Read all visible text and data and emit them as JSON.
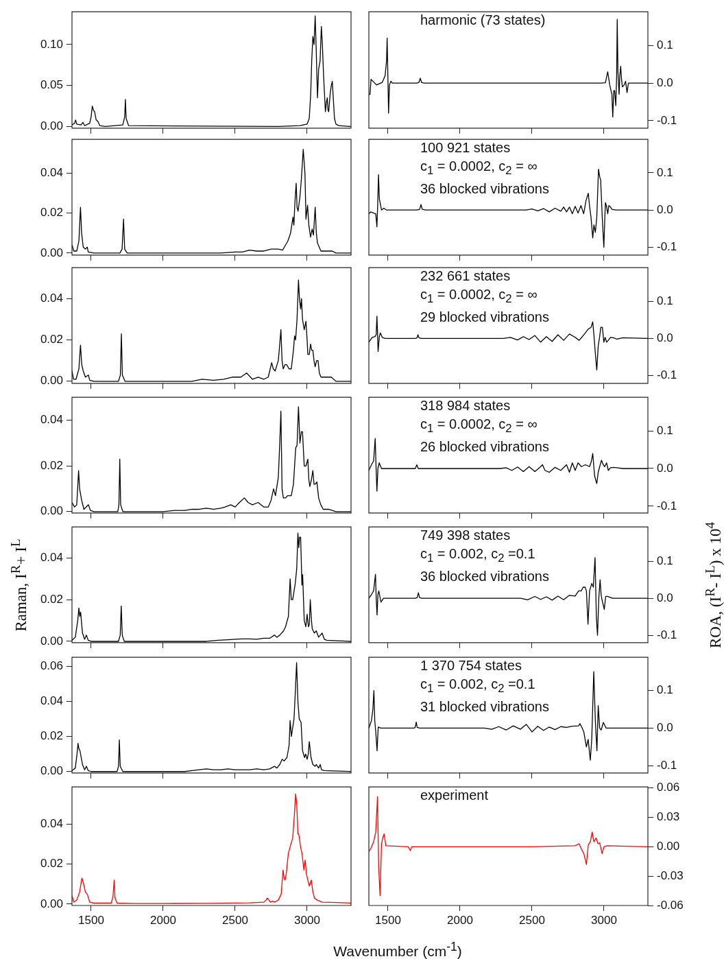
{
  "chart_data": [
    {
      "type": "line",
      "x": [
        1367,
        1385,
        1392,
        1400,
        1430,
        1443,
        1455,
        1490,
        1500,
        1508,
        1516,
        1524,
        1535,
        1548,
        1560,
        1600,
        1720,
        1733,
        1738,
        1743,
        1760,
        2800,
        2950,
        3000,
        3015,
        3025,
        3032,
        3040,
        3048,
        3056,
        3063,
        3072,
        3080,
        3090,
        3099,
        3106,
        3115,
        3127,
        3134,
        3140,
        3145,
        3150,
        3160,
        3168,
        3175,
        3180,
        3190,
        3200,
        3220,
        3305
      ],
      "series": [
        {
          "color": "#000000",
          "values": [
            0.002,
            0.004,
            0.008,
            0.003,
            0.002,
            0.005,
            0.001,
            0.004,
            0.012,
            0.025,
            0.02,
            0.018,
            0.008,
            0.006,
            0.001,
            0,
            0.002,
            0.012,
            0.033,
            0.01,
            0.001,
            0,
            0.001,
            0.003,
            0.01,
            0.04,
            0.08,
            0.11,
            0.1,
            0.135,
            0.095,
            0.035,
            0.07,
            0.08,
            0.122,
            0.1,
            0.06,
            0.018,
            0.03,
            0.035,
            0.02,
            0.018,
            0.04,
            0.05,
            0.055,
            0.04,
            0.01,
            0.003,
            0.001,
            0
          ]
        }
      ],
      "xlim": [
        1367,
        3305
      ],
      "xticks": [
        1500,
        2000,
        2500,
        3000
      ],
      "ylim": [
        -0.002,
        0.14
      ],
      "yticks": [
        {
          "value": 0,
          "label": "0.00"
        },
        {
          "value": 0.05,
          "label": "0.05"
        },
        {
          "value": 0.1,
          "label": "0.10"
        }
      ],
      "tick_labels": "y"
    },
    {
      "type": "line",
      "x": [
        1367,
        1375,
        1382,
        1395,
        1420,
        1460,
        1480,
        1490,
        1494,
        1498,
        1504,
        1510,
        1520,
        1530,
        1700,
        1715,
        1724,
        1733,
        1750,
        2980,
        3010,
        3026,
        3040,
        3055,
        3061,
        3068,
        3074,
        3082,
        3088,
        3092,
        3097,
        3105,
        3110,
        3116,
        3122,
        3128,
        3140,
        3150,
        3160,
        3170,
        3192,
        3305
      ],
      "series": [
        {
          "color": "#000000",
          "values": [
            -0.03,
            -0.03,
            0.01,
            0.005,
            -0.005,
            0.002,
            0.02,
            0.06,
            0.12,
            0.04,
            -0.08,
            -0.005,
            0.005,
            0,
            0,
            0.002,
            0.013,
            0.002,
            0,
            0,
            0.001,
            0.03,
            -0.005,
            -0.03,
            -0.09,
            -0.02,
            -0.02,
            -0.06,
            0.02,
            0.17,
            0.03,
            -0.03,
            0.02,
            0.045,
            0.01,
            -0.01,
            -0.005,
            0.005,
            -0.025,
            0,
            0,
            0
          ]
        }
      ],
      "xlim": [
        1367,
        3305
      ],
      "xticks": [
        1500,
        2000,
        2500,
        3000
      ],
      "ylim": [
        -0.12,
        0.19
      ],
      "yticks": [
        -0.1,
        {
          "value": 0,
          "label": "0.0"
        },
        0.1
      ],
      "tick_labels": "y",
      "annotations": [
        "harmonic (73 states)"
      ]
    },
    {
      "type": "line",
      "x": [
        1367,
        1380,
        1400,
        1415,
        1426,
        1434,
        1445,
        1460,
        1473,
        1480,
        1520,
        1700,
        1715,
        1725,
        1733,
        1750,
        2400,
        2500,
        2550,
        2600,
        2650,
        2700,
        2750,
        2800,
        2830,
        2850,
        2866,
        2885,
        2902,
        2908,
        2915,
        2924,
        2930,
        2937,
        2950,
        2961,
        2973,
        2980,
        2985,
        2992,
        3003,
        3012,
        3024,
        3035,
        3044,
        3056,
        3064,
        3072,
        3096,
        3150,
        3175,
        3200,
        3305
      ],
      "series": [
        {
          "color": "#000000",
          "values": [
            0.004,
            0.001,
            0.001,
            0.006,
            0.023,
            0.01,
            0.003,
            0.002,
            0.003,
            0.0005,
            0,
            0,
            0.002,
            0.017,
            0.002,
            0,
            0,
            0.0005,
            0.0005,
            0.0015,
            0.001,
            0.001,
            0.002,
            0.002,
            0.0015,
            0.004,
            0.006,
            0.01,
            0.018,
            0.014,
            0.025,
            0.035,
            0.023,
            0.021,
            0.028,
            0.038,
            0.052,
            0.045,
            0.04,
            0.017,
            0.024,
            0.014,
            0.008,
            0.012,
            0.009,
            0.023,
            0.01,
            0.005,
            0.001,
            0.001,
            0.001,
            0,
            0
          ]
        }
      ],
      "xlim": [
        1367,
        3305
      ],
      "xticks": [
        1500,
        2000,
        2500,
        3000
      ],
      "ylim": [
        -0.001,
        0.057
      ],
      "yticks": [
        {
          "value": 0,
          "label": "0.00"
        },
        {
          "value": 0.02,
          "label": "0.02"
        },
        {
          "value": 0.04,
          "label": "0.04"
        }
      ],
      "tick_labels": "y"
    },
    {
      "type": "line",
      "x": [
        1367,
        1380,
        1400,
        1415,
        1423,
        1428,
        1434,
        1440,
        1455,
        1471,
        1490,
        1700,
        1720,
        1729,
        1738,
        1760,
        2460,
        2500,
        2540,
        2580,
        2620,
        2660,
        2700,
        2720,
        2740,
        2760,
        2780,
        2800,
        2820,
        2840,
        2859,
        2875,
        2891,
        2900,
        2910,
        2922,
        2930,
        2940,
        2950,
        2962,
        2970,
        2977,
        2988,
        2999,
        3005,
        3010,
        3018,
        3026,
        3034,
        3042,
        3055,
        3080,
        3305
      ],
      "series": [
        {
          "color": "#000000",
          "values": [
            -0.01,
            -0.005,
            -0.008,
            -0.01,
            -0.045,
            0.01,
            0.095,
            0.03,
            0,
            0.005,
            0,
            0,
            0.002,
            0.015,
            0.002,
            0,
            0,
            0.003,
            -0.002,
            0.004,
            -0.005,
            0.005,
            -0.003,
            0.008,
            -0.005,
            0.008,
            -0.01,
            0.01,
            -0.008,
            0.012,
            -0.01,
            0.025,
            0.045,
            0.01,
            -0.02,
            -0.075,
            -0.04,
            -0.06,
            -0.02,
            0.11,
            0.09,
            0.08,
            -0.02,
            -0.1,
            -0.03,
            0.02,
            0.01,
            -0.01,
            0.012,
            0.01,
            0.002,
            0,
            0
          ]
        }
      ],
      "xlim": [
        1367,
        3305
      ],
      "xticks": [
        1500,
        2000,
        2500,
        3000
      ],
      "ylim": [
        -0.121,
        0.19
      ],
      "yticks": [
        -0.1,
        {
          "value": 0,
          "label": "0.0"
        },
        0.1
      ],
      "tick_labels": "y",
      "annotations": [
        "100 921 states",
        "c$_{1}$ = 0.0002, c$_{2}$ = ∞",
        "36 blocked vibrations"
      ]
    },
    {
      "type": "line",
      "x": [
        1367,
        1378,
        1395,
        1415,
        1426,
        1435,
        1445,
        1460,
        1481,
        1490,
        1520,
        1690,
        1703,
        1710,
        1717,
        1735,
        2200,
        2270,
        2350,
        2420,
        2480,
        2540,
        2580,
        2620,
        2660,
        2700,
        2730,
        2754,
        2765,
        2778,
        2800,
        2810,
        2818,
        2826,
        2834,
        2846,
        2858,
        2875,
        2890,
        2905,
        2913,
        2920,
        2930,
        2940,
        2947,
        2955,
        2961,
        2968,
        2980,
        2992,
        3000,
        3005,
        3015,
        3024,
        3032,
        3040,
        3048,
        3056,
        3066,
        3076,
        3085,
        3096,
        3128,
        3168,
        3200,
        3305
      ],
      "series": [
        {
          "color": "#000000",
          "values": [
            0.005,
            0.001,
            0.001,
            0.006,
            0.0175,
            0.008,
            0.005,
            0.002,
            0.003,
            0.0005,
            0,
            0,
            0.003,
            0.023,
            0.003,
            0,
            0,
            0.001,
            0.0005,
            0.001,
            0.002,
            0.002,
            0.004,
            0.001,
            0.002,
            0.001,
            0.002,
            0.009,
            0.006,
            0.005,
            0.01,
            0.018,
            0.025,
            0.01,
            0.006,
            0.008,
            0.008,
            0.006,
            0.006,
            0.015,
            0.022,
            0.02,
            0.03,
            0.049,
            0.04,
            0.035,
            0.04,
            0.03,
            0.025,
            0.029,
            0.02,
            0.013,
            0.013,
            0.018,
            0.015,
            0.015,
            0.01,
            0.007,
            0.01,
            0.01,
            0.004,
            0.002,
            0.002,
            0.002,
            0,
            0
          ]
        }
      ],
      "xlim": [
        1367,
        3305
      ],
      "xticks": [
        1500,
        2000,
        2500,
        3000
      ],
      "ylim": [
        -0.001,
        0.055
      ],
      "yticks": [
        {
          "value": 0,
          "label": "0.00"
        },
        {
          "value": 0.02,
          "label": "0.02"
        },
        {
          "value": 0.04,
          "label": "0.04"
        }
      ],
      "tick_labels": "y"
    },
    {
      "type": "line",
      "x": [
        1367,
        1390,
        1410,
        1418,
        1423,
        1427,
        1431,
        1440,
        1447,
        1460,
        1480,
        1690,
        1702,
        1708,
        1715,
        1730,
        2300,
        2350,
        2400,
        2440,
        2480,
        2520,
        2560,
        2600,
        2640,
        2680,
        2720,
        2760,
        2800,
        2827,
        2850,
        2870,
        2890,
        2910,
        2922,
        2930,
        2940,
        2950,
        2960,
        2970,
        2978,
        2989,
        2999,
        3008,
        3018,
        3030,
        3045,
        3066,
        3090,
        3130,
        3305
      ],
      "series": [
        {
          "color": "#000000",
          "values": [
            -0.01,
            0.003,
            0.005,
            0.01,
            0.06,
            0.02,
            -0.035,
            0.005,
            0.015,
            0.003,
            0,
            0,
            0.002,
            0.01,
            0.002,
            0,
            0,
            0.003,
            -0.004,
            0.005,
            -0.003,
            0.008,
            -0.01,
            0.005,
            -0.008,
            0.01,
            -0.005,
            0.012,
            0.003,
            -0.005,
            0.005,
            0.015,
            0.025,
            0.03,
            0.045,
            0.01,
            -0.04,
            -0.085,
            -0.02,
            0.005,
            0.03,
            0.03,
            -0.01,
            0.003,
            -0.01,
            -0.005,
            0.003,
            0.002,
            -0.002,
            0.002,
            0
          ]
        }
      ],
      "xlim": [
        1367,
        3305
      ],
      "xticks": [
        1500,
        2000,
        2500,
        3000
      ],
      "ylim": [
        -0.121,
        0.191
      ],
      "yticks": [
        -0.1,
        {
          "value": 0,
          "label": "0.0"
        },
        0.1
      ],
      "tick_labels": "y",
      "annotations": [
        "232 661 states",
        "c$_{1}$ = 0.0002, c$_{2}$ = ∞",
        "29 blocked vibrations"
      ]
    },
    {
      "type": "line",
      "x": [
        1367,
        1385,
        1400,
        1413,
        1420,
        1434,
        1450,
        1481,
        1495,
        1520,
        1685,
        1693,
        1699,
        1705,
        1720,
        1800,
        2000,
        2080,
        2150,
        2200,
        2250,
        2300,
        2350,
        2400,
        2430,
        2470,
        2500,
        2530,
        2564,
        2590,
        2620,
        2660,
        2700,
        2730,
        2750,
        2767,
        2780,
        2800,
        2810,
        2818,
        2826,
        2835,
        2850,
        2865,
        2874,
        2890,
        2905,
        2921,
        2930,
        2940,
        2950,
        2960,
        2968,
        2980,
        2992,
        3005,
        3012,
        3019,
        3030,
        3040,
        3048,
        3056,
        3068,
        3080,
        3095,
        3112,
        3150,
        3200,
        3305
      ],
      "series": [
        {
          "color": "#000000",
          "values": [
            0.004,
            0.002,
            0.003,
            0.018,
            0.01,
            0.005,
            0.001,
            0.003,
            0.0005,
            0,
            0,
            0.003,
            0.023,
            0.003,
            0,
            0,
            0,
            0.0005,
            0.0005,
            0.001,
            0.001,
            0.0015,
            0.001,
            0.0015,
            0.002,
            0.003,
            0.002,
            0.004,
            0.006,
            0.004,
            0.003,
            0.004,
            0.002,
            0.002,
            0.005,
            0.01,
            0.007,
            0.015,
            0.03,
            0.044,
            0.01,
            0.006,
            0.006,
            0.007,
            0.007,
            0.007,
            0.012,
            0.028,
            0.029,
            0.046,
            0.03,
            0.035,
            0.035,
            0.02,
            0.02,
            0.023,
            0.014,
            0.011,
            0.014,
            0.018,
            0.012,
            0.012,
            0.013,
            0.006,
            0.003,
            0.001,
            0.001,
            0,
            0
          ]
        }
      ],
      "xlim": [
        1367,
        3305
      ],
      "xticks": [
        1500,
        2000,
        2500,
        3000
      ],
      "ylim": [
        -0.0006,
        0.0501
      ],
      "yticks": [
        {
          "value": 0,
          "label": "0.00"
        },
        {
          "value": 0.02,
          "label": "0.02"
        },
        {
          "value": 0.04,
          "label": "0.04"
        }
      ],
      "tick_labels": "y"
    },
    {
      "type": "line",
      "x": [
        1367,
        1385,
        1400,
        1411,
        1417,
        1423,
        1430,
        1439,
        1455,
        1480,
        1690,
        1700,
        1710,
        1730,
        2280,
        2320,
        2360,
        2400,
        2440,
        2480,
        2520,
        2560,
        2573,
        2590,
        2620,
        2660,
        2700,
        2740,
        2760,
        2780,
        2800,
        2820,
        2843,
        2870,
        2900,
        2913,
        2922,
        2935,
        2950,
        2960,
        2970,
        2983,
        2995,
        3005,
        3018,
        3030,
        3045,
        3066,
        3090,
        3130,
        3305
      ],
      "series": [
        {
          "color": "#000000",
          "values": [
            -0.005,
            0.01,
            0.02,
            0.08,
            0.005,
            -0.06,
            0,
            0.015,
            0,
            0,
            0,
            0.01,
            0,
            0,
            0,
            0.002,
            -0.005,
            0.004,
            -0.008,
            0.005,
            -0.008,
            0.005,
            0.01,
            -0.005,
            -0.01,
            0.003,
            -0.005,
            0.01,
            -0.01,
            0.015,
            -0.005,
            0.015,
            0.005,
            0.01,
            0.005,
            0.02,
            0.04,
            -0.02,
            -0.04,
            -0.01,
            0.005,
            0.022,
            0.01,
            0.005,
            0.015,
            -0.005,
            0.002,
            0.003,
            0.002,
            0,
            0
          ]
        }
      ],
      "xlim": [
        1367,
        3305
      ],
      "xticks": [
        1500,
        2000,
        2500,
        3000
      ],
      "ylim": [
        -0.118,
        0.189
      ],
      "yticks": [
        -0.1,
        {
          "value": 0,
          "label": "0.0"
        },
        0.1
      ],
      "tick_labels": "y",
      "annotations": [
        "318 984 states",
        "c$_{1}$ = 0.0002, c$_{2}$ = ∞",
        "26 blocked vibrations"
      ]
    },
    {
      "type": "line",
      "x": [
        1367,
        1390,
        1407,
        1415,
        1421,
        1427,
        1440,
        1455,
        1467,
        1480,
        1500,
        1690,
        1702,
        1709,
        1716,
        1730,
        2300,
        2380,
        2450,
        2500,
        2550,
        2600,
        2650,
        2700,
        2740,
        2773,
        2790,
        2810,
        2836,
        2850,
        2870,
        2882,
        2890,
        2900,
        2918,
        2928,
        2936,
        2942,
        2948,
        2955,
        2964,
        2969,
        2980,
        2991,
        3000,
        3009,
        3015,
        3022,
        3030,
        3036,
        3050,
        3064,
        3080,
        3104,
        3120,
        3136,
        3305
      ],
      "series": [
        {
          "color": "#000000",
          "values": [
            0.0005,
            0.002,
            0.01,
            0.016,
            0.012,
            0.014,
            0.004,
            0.001,
            0.003,
            0.0005,
            0,
            0,
            0.003,
            0.017,
            0.003,
            0,
            0,
            0.0005,
            0.0008,
            0.001,
            0.0012,
            0.0012,
            0.001,
            0.0015,
            0.0015,
            0.003,
            0.002,
            0.003,
            0.005,
            0.007,
            0.012,
            0.03,
            0.02,
            0.02,
            0.028,
            0.035,
            0.052,
            0.045,
            0.05,
            0.05,
            0.027,
            0.032,
            0.01,
            0.007,
            0.013,
            0.007,
            0.008,
            0.02,
            0.01,
            0.006,
            0.004,
            0.005,
            0.002,
            0.004,
            0.001,
            0.0005,
            0
          ]
        }
      ],
      "xlim": [
        1367,
        3305
      ],
      "xticks": [
        1500,
        2000,
        2500,
        3000
      ],
      "ylim": [
        -0.0006,
        0.0549
      ],
      "yticks": [
        {
          "value": 0,
          "label": "0.00"
        },
        {
          "value": 0.02,
          "label": "0.02"
        },
        {
          "value": 0.04,
          "label": "0.04"
        }
      ],
      "tick_labels": "y",
      "ylabel": "Raman, I$^{R}$+ I$^{L}$"
    },
    {
      "type": "line",
      "x": [
        1367,
        1385,
        1400,
        1413,
        1418,
        1424,
        1430,
        1436,
        1451,
        1469,
        1690,
        1703,
        1711,
        1719,
        1735,
        2420,
        2470,
        2520,
        2560,
        2600,
        2640,
        2680,
        2720,
        2760,
        2800,
        2824,
        2842,
        2855,
        2869,
        2878,
        2889,
        2900,
        2915,
        2926,
        2938,
        2947,
        2955,
        2964,
        2973,
        2980,
        2987,
        3002,
        3012,
        3024,
        3060,
        3305
      ],
      "series": [
        {
          "color": "#000000",
          "values": [
            0,
            0.01,
            0.02,
            0.065,
            0,
            -0.045,
            0.01,
            0.02,
            -0.01,
            0,
            0,
            0.002,
            0.015,
            0.002,
            0,
            0,
            -0.004,
            0.005,
            -0.003,
            0.004,
            -0.005,
            0.006,
            -0.004,
            0.008,
            0.006,
            0.02,
            0.02,
            0.03,
            0.03,
            0.02,
            -0.07,
            0.02,
            0.04,
            0.03,
            0.11,
            -0.05,
            -0.1,
            0,
            0.05,
            0.01,
            -0.005,
            -0.03,
            0.005,
            0.005,
            0,
            0
          ]
        }
      ],
      "xlim": [
        1367,
        3305
      ],
      "xticks": [
        1500,
        2000,
        2500,
        3000
      ],
      "ylim": [
        -0.12,
        0.193
      ],
      "yticks": [
        -0.1,
        {
          "value": 0,
          "label": "0.0"
        },
        0.1
      ],
      "tick_labels": "y",
      "ylabel": "ROA, (I$^{R}$- I$^{L}$) x 10$^{4}$",
      "annotations": [
        "749 398 states",
        "c$_{1}$ = 0.002, c$_{2}$ =0.1",
        "36 blocked vibrations"
      ]
    },
    {
      "type": "line",
      "x": [
        1367,
        1390,
        1402,
        1409,
        1415,
        1422,
        1440,
        1455,
        1467,
        1480,
        1500,
        1680,
        1690,
        1696,
        1702,
        1720,
        2150,
        2200,
        2250,
        2300,
        2350,
        2400,
        2450,
        2500,
        2550,
        2600,
        2650,
        2700,
        2740,
        2773,
        2790,
        2810,
        2827,
        2840,
        2860,
        2875,
        2882,
        2891,
        2900,
        2909,
        2918,
        2927,
        2936,
        2945,
        2958,
        2968,
        2982,
        2990,
        3000,
        3008,
        3015,
        3027,
        3040,
        3055,
        3064,
        3080,
        3091,
        3100,
        3120,
        3305
      ],
      "series": [
        {
          "color": "#000000",
          "values": [
            0.0005,
            0.002,
            0.01,
            0.016,
            0.013,
            0.012,
            0.004,
            0.001,
            0.003,
            0.0005,
            0,
            0,
            0.003,
            0.018,
            0.003,
            0,
            0,
            0.0005,
            0.001,
            0.0015,
            0.001,
            0.001,
            0.0015,
            0.001,
            0.001,
            0.001,
            0.0015,
            0.001,
            0.0015,
            0.003,
            0.002,
            0.004,
            0.007,
            0.006,
            0.008,
            0.015,
            0.029,
            0.02,
            0.025,
            0.03,
            0.045,
            0.062,
            0.04,
            0.03,
            0.028,
            0.012,
            0.008,
            0.01,
            0.007,
            0.01,
            0.017,
            0.008,
            0.004,
            0.003,
            0.004,
            0.002,
            0.004,
            0.001,
            0.0005,
            0
          ]
        }
      ],
      "xlim": [
        1367,
        3305
      ],
      "xticks": [
        1500,
        2000,
        2500,
        3000
      ],
      "ylim": [
        -0.0008,
        0.065
      ],
      "yticks": [
        {
          "value": 0,
          "label": "0.00"
        },
        {
          "value": 0.02,
          "label": "0.02"
        },
        {
          "value": 0.04,
          "label": "0.04"
        },
        {
          "value": 0.06,
          "label": "0.06"
        }
      ],
      "tick_labels": "y"
    },
    {
      "type": "line",
      "x": [
        1367,
        1385,
        1395,
        1402,
        1408,
        1415,
        1424,
        1432,
        1450,
        1680,
        1689,
        1696,
        1703,
        1720,
        2170,
        2220,
        2270,
        2320,
        2370,
        2420,
        2460,
        2500,
        2540,
        2580,
        2620,
        2660,
        2700,
        2740,
        2780,
        2824,
        2833,
        2845,
        2860,
        2878,
        2890,
        2905,
        2915,
        2929,
        2940,
        2951,
        2960,
        2970,
        2980,
        2996,
        3015,
        3305
      ],
      "series": [
        {
          "color": "#000000",
          "values": [
            0,
            0.02,
            0.05,
            0.1,
            0.02,
            -0.01,
            -0.06,
            0.003,
            0,
            0,
            0.002,
            0.016,
            0.002,
            0,
            0,
            -0.003,
            0.004,
            -0.005,
            0.006,
            -0.003,
            0.01,
            -0.01,
            0.005,
            -0.006,
            0.003,
            -0.004,
            0.004,
            0.002,
            0.005,
            0.006,
            0.012,
            0.003,
            -0.01,
            -0.05,
            -0.03,
            -0.085,
            -0.03,
            0.15,
            0.02,
            -0.06,
            0.06,
            0,
            -0.005,
            0.015,
            0,
            0
          ]
        }
      ],
      "xlim": [
        1367,
        3305
      ],
      "xticks": [
        1500,
        2000,
        2500,
        3000
      ],
      "ylim": [
        -0.119,
        0.188
      ],
      "yticks": [
        -0.1,
        {
          "value": 0,
          "label": "0.0"
        },
        0.1
      ],
      "tick_labels": "y",
      "annotations": [
        "1 370 754 states",
        "c$_{1}$ = 0.002, c$_{2}$ =0.1",
        "31 blocked vibrations"
      ]
    },
    {
      "type": "line",
      "x": [
        1367,
        1380,
        1400,
        1420,
        1436,
        1445,
        1460,
        1473,
        1490,
        1520,
        1640,
        1652,
        1660,
        1666,
        1680,
        1800,
        2000,
        2300,
        2600,
        2700,
        2715,
        2724,
        2735,
        2745,
        2760,
        2775,
        2800,
        2820,
        2833,
        2840,
        2847,
        2855,
        2869,
        2887,
        2900,
        2912,
        2920,
        2928,
        2936,
        2942,
        2956,
        2965,
        2978,
        2987,
        2995,
        3005,
        3015,
        3029,
        3040,
        3051,
        3070,
        3105,
        3200,
        3305
      ],
      "series": [
        {
          "color": "#ff0000",
          "values": [
            0.004,
            0.001,
            0.002,
            0.006,
            0.013,
            0.011,
            0.006,
            0.005,
            0.001,
            0.0005,
            0.0005,
            0.004,
            0.012,
            0.003,
            0.0005,
            0.0003,
            0.0003,
            0.0004,
            0.0006,
            0.001,
            0.002,
            0.003,
            0.002,
            0.001,
            0.0015,
            0.001,
            0.002,
            0.005,
            0.017,
            0.013,
            0.012,
            0.015,
            0.025,
            0.03,
            0.033,
            0.045,
            0.055,
            0.05,
            0.035,
            0.035,
            0.028,
            0.025,
            0.017,
            0.022,
            0.015,
            0.012,
            0.009,
            0.012,
            0.006,
            0.003,
            0.002,
            0.001,
            0.0008,
            0.0005
          ]
        }
      ],
      "xlim": [
        1367,
        3305
      ],
      "xticks": [
        1500,
        2000,
        2500,
        3000
      ],
      "ylim": [
        -0.0007,
        0.0585
      ],
      "yticks": [
        {
          "value": 0,
          "label": "0.00"
        },
        {
          "value": 0.02,
          "label": "0.02"
        },
        {
          "value": 0.04,
          "label": "0.04"
        }
      ]
    },
    {
      "type": "line",
      "x": [
        1367,
        1380,
        1400,
        1415,
        1427,
        1435,
        1445,
        1455,
        1465,
        1473,
        1485,
        1640,
        1655,
        1665,
        2200,
        2500,
        2800,
        2827,
        2845,
        2860,
        2878,
        2891,
        2905,
        2918,
        2930,
        2945,
        2958,
        2970,
        2987,
        3000,
        3020,
        3305
      ],
      "series": [
        {
          "color": "#ff0000",
          "values": [
            -0.005,
            -0.002,
            0.005,
            0.015,
            0.051,
            -0.02,
            -0.05,
            0.003,
            0.01,
            0.013,
            0.001,
            0,
            -0.004,
            0,
            0,
            0,
            0.001,
            0.003,
            -0.003,
            -0.007,
            -0.018,
            0.002,
            0.005,
            0.015,
            0.005,
            0.009,
            0.003,
            0.004,
            -0.007,
            0,
            0.001,
            0
          ]
        }
      ],
      "xlim": [
        1367,
        3305
      ],
      "xticks": [
        1500,
        2000,
        2500,
        3000
      ],
      "ylim": [
        -0.06,
        0.061
      ],
      "yticks": [
        -0.06,
        -0.03,
        {
          "value": 0,
          "label": "0.00"
        },
        0.03,
        0.06
      ],
      "xlabel": "Wavenumber (cm$^{-1}$)",
      "annotations": [
        "experiment"
      ]
    }
  ]
}
